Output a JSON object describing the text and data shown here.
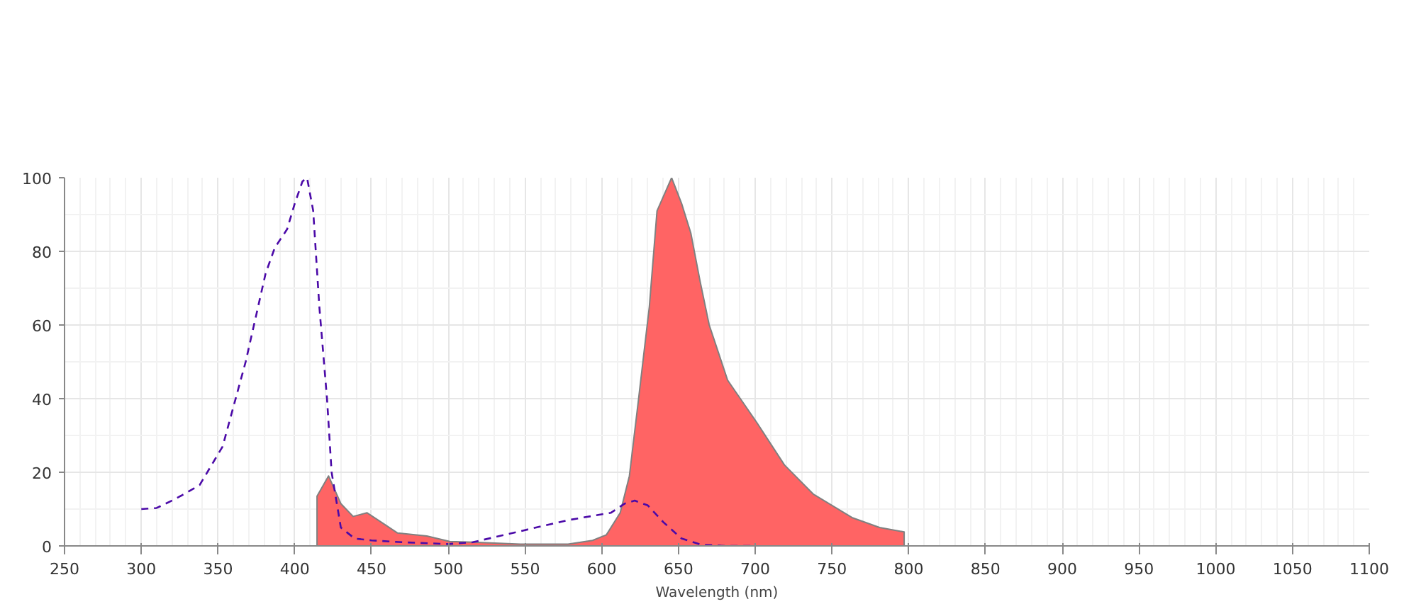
{
  "chart_data": {
    "type": "line",
    "xlabel": "Wavelength (nm)",
    "xlim": [
      250,
      1100
    ],
    "xticks": [
      250,
      300,
      350,
      400,
      450,
      500,
      550,
      600,
      650,
      700,
      750,
      800,
      850,
      900,
      950,
      1000,
      1050,
      1100
    ],
    "ylim": [
      0,
      100
    ],
    "yticks": [
      0,
      20,
      40,
      60,
      80,
      100
    ],
    "grid": true,
    "series": [
      {
        "line_style": "dashed",
        "color": "#4b0aa8",
        "x": [
          300,
          310,
          322,
          338,
          353,
          368,
          381,
          387,
          395,
          400,
          405,
          408,
          412,
          416,
          421,
          424,
          430,
          439,
          450,
          470,
          500,
          516,
          547,
          578,
          606,
          615,
          621.5,
          630,
          640,
          652,
          665,
          680,
          700
        ],
        "values": [
          10,
          10.3,
          12.7,
          16.5,
          27,
          50,
          74,
          81,
          86,
          93,
          99,
          100,
          91,
          65,
          40,
          20,
          5,
          2,
          1.5,
          1,
          0.5,
          1,
          4,
          7,
          9,
          11.5,
          12.3,
          11,
          6.5,
          2,
          0.3,
          0,
          0
        ]
      },
      {
        "type": "area",
        "color": "#ff6464",
        "x": [
          414.5,
          414.5,
          422,
          430,
          438,
          447,
          458,
          467,
          486,
          501,
          516,
          547,
          578,
          594,
          603,
          612,
          618,
          624,
          631,
          636,
          645.5,
          652,
          658,
          664,
          670,
          682,
          701,
          719,
          738,
          763,
          781,
          797,
          797
        ],
        "values": [
          0,
          13.5,
          19,
          11.5,
          8,
          9,
          6,
          3.5,
          2.7,
          1.2,
          1,
          0.5,
          0.5,
          1.5,
          3,
          9,
          19,
          40,
          65,
          91,
          100,
          93,
          85,
          72,
          60,
          45,
          33.5,
          22,
          14,
          7.7,
          5,
          3.8,
          0
        ]
      }
    ]
  }
}
